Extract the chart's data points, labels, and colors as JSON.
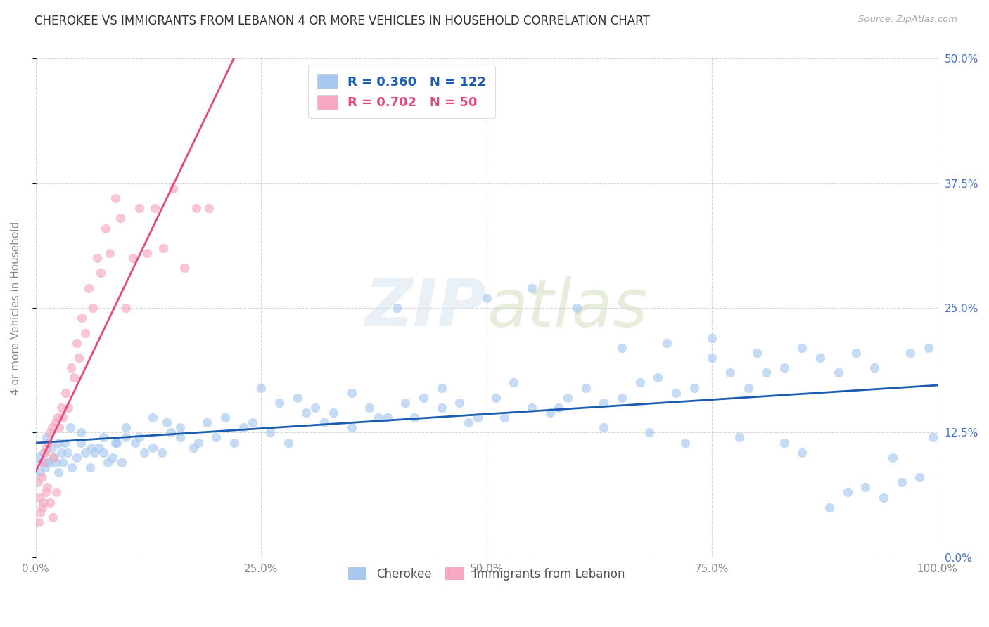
{
  "title": "CHEROKEE VS IMMIGRANTS FROM LEBANON 4 OR MORE VEHICLES IN HOUSEHOLD CORRELATION CHART",
  "source": "Source: ZipAtlas.com",
  "ylabel_label": "4 or more Vehicles in Household",
  "watermark": "ZIPatlas",
  "background_color": "#ffffff",
  "cherokee_scatter_color": "#a8c8f0",
  "lebanon_scatter_color": "#f5a8c0",
  "cherokee_line_color": "#1a5cb0",
  "lebanon_line_color": "#e84880",
  "cherokee_R": 0.36,
  "cherokee_N": 122,
  "lebanon_R": 0.702,
  "lebanon_N": 50,
  "xlim": [
    0.0,
    100.0
  ],
  "ylim": [
    0.0,
    50.0
  ],
  "yticks": [
    0.0,
    12.5,
    25.0,
    37.5,
    50.0
  ],
  "xticks": [
    0.0,
    25.0,
    50.0,
    75.0,
    100.0
  ],
  "xtick_labels": [
    "0.0%",
    "25.0%",
    "50.0%",
    "75.0%",
    "100.0%"
  ],
  "ytick_labels": [
    "0.0%",
    "12.5%",
    "25.0%",
    "37.5%",
    "50.0%"
  ],
  "legend_label_cherokee": "Cherokee",
  "legend_label_lebanon": "Immigrants from Lebanon",
  "cherokee_x": [
    1.2,
    2.5,
    3.8,
    5.0,
    6.2,
    7.5,
    8.8,
    10.0,
    11.5,
    13.0,
    14.5,
    16.0,
    17.5,
    19.0,
    21.0,
    23.0,
    25.0,
    27.0,
    29.0,
    31.0,
    33.0,
    35.0,
    37.0,
    39.0,
    41.0,
    43.0,
    45.0,
    47.0,
    49.0,
    51.0,
    53.0,
    55.0,
    57.0,
    59.0,
    61.0,
    63.0,
    65.0,
    67.0,
    69.0,
    71.0,
    73.0,
    75.0,
    77.0,
    79.0,
    81.0,
    83.0,
    85.0,
    87.0,
    89.0,
    91.0,
    93.0,
    95.0,
    97.0,
    99.0,
    0.5,
    1.0,
    1.5,
    2.0,
    2.5,
    3.0,
    3.5,
    4.0,
    4.5,
    5.0,
    5.5,
    6.0,
    6.5,
    7.0,
    7.5,
    8.0,
    8.5,
    9.0,
    9.5,
    10.0,
    11.0,
    12.0,
    13.0,
    14.0,
    15.0,
    16.0,
    18.0,
    20.0,
    22.0,
    24.0,
    26.0,
    28.0,
    30.0,
    32.0,
    35.0,
    38.0,
    40.0,
    42.0,
    45.0,
    48.0,
    50.0,
    52.0,
    55.0,
    58.0,
    60.0,
    63.0,
    65.0,
    68.0,
    70.0,
    72.0,
    75.0,
    78.0,
    80.0,
    83.0,
    85.0,
    88.0,
    90.0,
    92.0,
    94.0,
    96.0,
    98.0,
    99.5,
    0.3,
    0.6,
    0.9,
    1.2,
    1.8,
    2.2,
    2.8,
    3.2
  ],
  "cherokee_y": [
    12.0,
    11.5,
    13.0,
    12.5,
    11.0,
    12.0,
    11.5,
    13.0,
    12.0,
    14.0,
    13.5,
    12.0,
    11.0,
    13.5,
    14.0,
    13.0,
    17.0,
    15.5,
    16.0,
    15.0,
    14.5,
    16.5,
    15.0,
    14.0,
    15.5,
    16.0,
    17.0,
    15.5,
    14.0,
    16.0,
    17.5,
    15.0,
    14.5,
    16.0,
    17.0,
    15.5,
    16.0,
    17.5,
    18.0,
    16.5,
    17.0,
    20.0,
    18.5,
    17.0,
    18.5,
    19.0,
    10.5,
    20.0,
    18.5,
    20.5,
    19.0,
    10.0,
    20.5,
    21.0,
    8.5,
    9.0,
    9.5,
    10.0,
    8.5,
    9.5,
    10.5,
    9.0,
    10.0,
    11.5,
    10.5,
    9.0,
    10.5,
    11.0,
    10.5,
    9.5,
    10.0,
    11.5,
    9.5,
    12.0,
    11.5,
    10.5,
    11.0,
    10.5,
    12.5,
    13.0,
    11.5,
    12.0,
    11.5,
    13.5,
    12.5,
    11.5,
    14.5,
    13.5,
    13.0,
    14.0,
    25.0,
    14.0,
    15.0,
    13.5,
    26.0,
    14.0,
    27.0,
    15.0,
    25.0,
    13.0,
    21.0,
    12.5,
    21.5,
    11.5,
    22.0,
    12.0,
    20.5,
    11.5,
    21.0,
    5.0,
    6.5,
    7.0,
    6.0,
    7.5,
    8.0,
    12.0,
    10.0,
    9.5,
    10.5,
    9.5,
    11.0,
    9.5,
    10.5,
    11.5
  ],
  "lebanon_x": [
    0.2,
    0.4,
    0.6,
    0.8,
    1.0,
    1.2,
    1.4,
    1.6,
    1.8,
    2.0,
    2.2,
    2.4,
    2.6,
    2.8,
    3.0,
    3.3,
    3.6,
    3.9,
    4.2,
    4.5,
    4.8,
    5.1,
    5.5,
    5.9,
    6.3,
    6.8,
    7.2,
    7.7,
    8.2,
    8.8,
    9.4,
    10.0,
    10.8,
    11.5,
    12.3,
    13.2,
    14.1,
    15.2,
    16.5,
    17.8,
    19.2,
    0.3,
    0.5,
    0.7,
    0.9,
    1.1,
    1.3,
    1.6,
    1.9,
    2.3
  ],
  "lebanon_y": [
    7.5,
    6.0,
    8.0,
    9.5,
    10.5,
    11.0,
    11.5,
    12.5,
    13.0,
    10.0,
    13.5,
    14.0,
    13.0,
    15.0,
    14.0,
    16.5,
    15.0,
    19.0,
    18.0,
    21.5,
    20.0,
    24.0,
    22.5,
    27.0,
    25.0,
    30.0,
    28.5,
    33.0,
    30.5,
    36.0,
    34.0,
    25.0,
    30.0,
    35.0,
    30.5,
    35.0,
    31.0,
    37.0,
    29.0,
    35.0,
    35.0,
    3.5,
    4.5,
    5.0,
    5.5,
    6.5,
    7.0,
    5.5,
    4.0,
    6.5
  ]
}
